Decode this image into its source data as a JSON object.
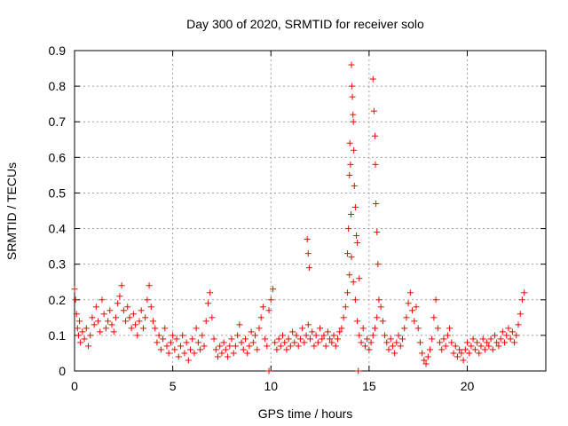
{
  "chart_data": {
    "type": "scatter",
    "title": "Day 300 of 2020, SRMTID for receiver solo",
    "xlabel": "GPS time / hours",
    "ylabel": "SRMTID / TECUs",
    "xlim": [
      0,
      24
    ],
    "ylim": [
      0,
      0.9
    ],
    "xticks": [
      "0",
      "5",
      "10",
      "15",
      "20"
    ],
    "xtick_values": [
      0,
      5,
      10,
      15,
      20
    ],
    "yticks": [
      "0",
      "0.1",
      "0.2",
      "0.3",
      "0.4",
      "0.5",
      "0.6",
      "0.7",
      "0.8",
      "0.9"
    ],
    "ytick_values": [
      0,
      0.1,
      0.2,
      0.3,
      0.4,
      0.5,
      0.6,
      0.7,
      0.8,
      0.9
    ],
    "grid": true,
    "marker": "+",
    "color": "#ff0000",
    "series": [
      {
        "name": "SRMTID",
        "x": [
          0.0,
          0.05,
          0.1,
          0.15,
          0.2,
          0.25,
          0.3,
          0.4,
          0.5,
          0.6,
          0.7,
          0.8,
          0.9,
          1.0,
          1.1,
          1.2,
          1.3,
          1.4,
          1.5,
          1.6,
          1.7,
          1.8,
          1.9,
          2.0,
          2.1,
          2.2,
          2.3,
          2.4,
          2.5,
          2.6,
          2.7,
          2.8,
          2.9,
          3.0,
          3.1,
          3.2,
          3.3,
          3.4,
          3.5,
          3.6,
          3.7,
          3.8,
          3.9,
          4.0,
          4.1,
          4.2,
          4.3,
          4.4,
          4.5,
          4.6,
          4.7,
          4.8,
          4.9,
          5.0,
          5.1,
          5.2,
          5.3,
          5.4,
          5.5,
          5.6,
          5.7,
          5.8,
          5.9,
          6.0,
          6.1,
          6.2,
          6.3,
          6.4,
          6.5,
          6.6,
          6.7,
          6.8,
          6.9,
          7.0,
          7.1,
          7.2,
          7.3,
          7.4,
          7.5,
          7.6,
          7.7,
          7.8,
          7.9,
          8.0,
          8.1,
          8.2,
          8.3,
          8.4,
          8.5,
          8.6,
          8.7,
          8.8,
          8.9,
          9.0,
          9.1,
          9.2,
          9.3,
          9.4,
          9.5,
          9.6,
          9.7,
          9.8,
          9.9,
          10.0,
          10.1,
          10.2,
          10.3,
          10.4,
          10.5,
          10.6,
          10.7,
          10.8,
          10.9,
          11.0,
          11.1,
          11.2,
          11.3,
          11.4,
          11.5,
          11.6,
          11.7,
          11.8,
          11.9,
          12.0,
          12.1,
          12.2,
          12.3,
          12.4,
          12.5,
          12.6,
          12.7,
          12.8,
          12.9,
          13.0,
          13.1,
          13.2,
          13.3,
          13.4,
          13.5,
          13.6,
          13.7,
          13.8,
          13.9,
          14.0,
          14.1,
          14.2,
          14.3,
          14.4,
          14.5,
          14.6,
          14.7,
          14.8,
          14.9,
          15.0,
          15.1,
          15.2,
          15.3,
          15.4,
          15.5,
          15.6,
          15.7,
          15.8,
          15.9,
          16.0,
          16.1,
          16.2,
          16.3,
          16.4,
          16.5,
          16.6,
          16.7,
          16.8,
          16.9,
          17.0,
          17.1,
          17.2,
          17.3,
          17.4,
          17.5,
          17.6,
          17.7,
          17.8,
          17.9,
          18.0,
          18.1,
          18.2,
          18.3,
          18.4,
          18.5,
          18.6,
          18.7,
          18.8,
          18.9,
          19.0,
          19.1,
          19.2,
          19.3,
          19.4,
          19.5,
          19.6,
          19.7,
          19.8,
          19.9,
          20.0,
          20.1,
          20.2,
          20.3,
          20.4,
          20.5,
          20.6,
          20.7,
          20.8,
          20.9,
          21.0,
          21.1,
          21.2,
          21.3,
          21.4,
          21.5,
          21.6,
          21.7,
          21.8,
          21.9,
          22.0,
          22.1,
          22.2,
          22.3,
          22.4,
          22.5,
          22.6,
          22.7,
          22.8,
          22.9,
          11.85,
          11.9,
          11.95,
          13.9,
          13.95,
          14.0,
          14.02,
          14.05,
          14.08,
          14.1,
          14.12,
          14.15,
          14.18,
          14.2,
          14.22,
          14.25,
          14.3,
          14.35,
          14.4,
          14.5,
          15.2,
          15.25,
          15.3,
          15.32,
          15.35,
          15.4,
          15.45,
          9.9,
          14.45
        ],
        "y": [
          0.23,
          0.2,
          0.16,
          0.12,
          0.1,
          0.14,
          0.08,
          0.11,
          0.09,
          0.12,
          0.07,
          0.1,
          0.15,
          0.13,
          0.18,
          0.14,
          0.11,
          0.2,
          0.16,
          0.12,
          0.14,
          0.17,
          0.13,
          0.11,
          0.15,
          0.19,
          0.21,
          0.24,
          0.17,
          0.14,
          0.18,
          0.15,
          0.12,
          0.16,
          0.13,
          0.1,
          0.14,
          0.17,
          0.12,
          0.15,
          0.2,
          0.24,
          0.18,
          0.14,
          0.12,
          0.08,
          0.1,
          0.06,
          0.09,
          0.12,
          0.07,
          0.05,
          0.08,
          0.1,
          0.06,
          0.09,
          0.04,
          0.07,
          0.1,
          0.05,
          0.08,
          0.03,
          0.06,
          0.09,
          0.05,
          0.12,
          0.08,
          0.06,
          0.1,
          0.07,
          0.14,
          0.19,
          0.22,
          0.15,
          0.09,
          0.06,
          0.04,
          0.07,
          0.05,
          0.08,
          0.06,
          0.04,
          0.07,
          0.09,
          0.05,
          0.07,
          0.1,
          0.13,
          0.08,
          0.06,
          0.09,
          0.05,
          0.07,
          0.11,
          0.08,
          0.1,
          0.06,
          0.12,
          0.15,
          0.18,
          0.09,
          0.07,
          0.17,
          0.2,
          0.23,
          0.08,
          0.06,
          0.09,
          0.07,
          0.1,
          0.08,
          0.06,
          0.09,
          0.07,
          0.11,
          0.08,
          0.1,
          0.07,
          0.09,
          0.12,
          0.08,
          0.1,
          0.13,
          0.09,
          0.11,
          0.07,
          0.1,
          0.08,
          0.12,
          0.09,
          0.1,
          0.07,
          0.11,
          0.09,
          0.08,
          0.1,
          0.07,
          0.09,
          0.11,
          0.12,
          0.15,
          0.18,
          0.22,
          0.27,
          0.32,
          0.25,
          0.2,
          0.14,
          0.1,
          0.08,
          0.12,
          0.07,
          0.09,
          0.06,
          0.08,
          0.1,
          0.12,
          0.15,
          0.2,
          0.18,
          0.14,
          0.1,
          0.08,
          0.06,
          0.09,
          0.07,
          0.05,
          0.08,
          0.1,
          0.07,
          0.09,
          0.12,
          0.15,
          0.19,
          0.22,
          0.17,
          0.14,
          0.18,
          0.12,
          0.08,
          0.05,
          0.03,
          0.02,
          0.04,
          0.06,
          0.09,
          0.15,
          0.2,
          0.12,
          0.08,
          0.06,
          0.09,
          0.07,
          0.1,
          0.12,
          0.08,
          0.05,
          0.07,
          0.04,
          0.06,
          0.05,
          0.03,
          0.06,
          0.08,
          0.05,
          0.07,
          0.09,
          0.06,
          0.08,
          0.05,
          0.07,
          0.09,
          0.06,
          0.08,
          0.07,
          0.09,
          0.06,
          0.1,
          0.08,
          0.07,
          0.09,
          0.11,
          0.08,
          0.1,
          0.12,
          0.09,
          0.11,
          0.08,
          0.1,
          0.13,
          0.16,
          0.2,
          0.22,
          0.37,
          0.33,
          0.29,
          0.33,
          0.4,
          0.55,
          0.64,
          0.58,
          0.44,
          0.86,
          0.8,
          0.77,
          0.72,
          0.7,
          0.62,
          0.52,
          0.46,
          0.38,
          0.36,
          0.26,
          0.82,
          0.73,
          0.66,
          0.58,
          0.47,
          0.39,
          0.3,
          0.0,
          0.0
        ]
      }
    ]
  }
}
